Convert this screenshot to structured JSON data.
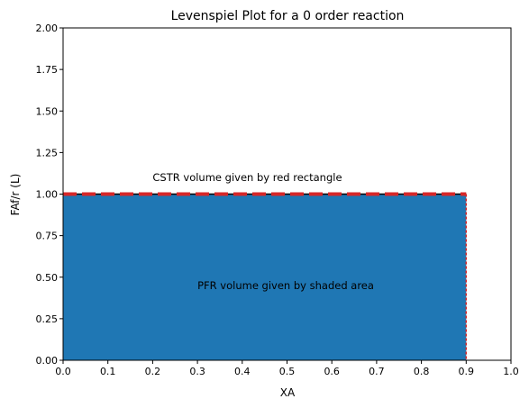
{
  "chart_data": {
    "type": "area",
    "title": "Levenspiel Plot for a 0 order reaction",
    "xlabel": "XA",
    "ylabel": "FAf/r (L)",
    "xlim": [
      0.0,
      1.0
    ],
    "ylim": [
      0.0,
      2.0
    ],
    "xticks": [
      "0.0",
      "0.1",
      "0.2",
      "0.3",
      "0.4",
      "0.5",
      "0.6",
      "0.7",
      "0.8",
      "0.9",
      "1.0"
    ],
    "yticks": [
      "0.00",
      "0.25",
      "0.50",
      "0.75",
      "1.00",
      "1.25",
      "1.50",
      "1.75",
      "2.00"
    ],
    "grid": false,
    "series": [
      {
        "name": "PFR",
        "kind": "filled-area",
        "color": "#1f77b4",
        "x": [
          0.0,
          0.9
        ],
        "y": [
          1.0,
          1.0
        ]
      },
      {
        "name": "CSTR",
        "kind": "dashed-rectangle",
        "color": "#d62728",
        "x": [
          0.0,
          0.9
        ],
        "y": [
          0.0,
          1.0
        ]
      }
    ],
    "annotations": [
      {
        "text": "CSTR volume given by red rectangle",
        "x": 0.2,
        "y": 1.1
      },
      {
        "text": "PFR volume given by shaded area",
        "x": 0.3,
        "y": 0.45
      }
    ]
  }
}
